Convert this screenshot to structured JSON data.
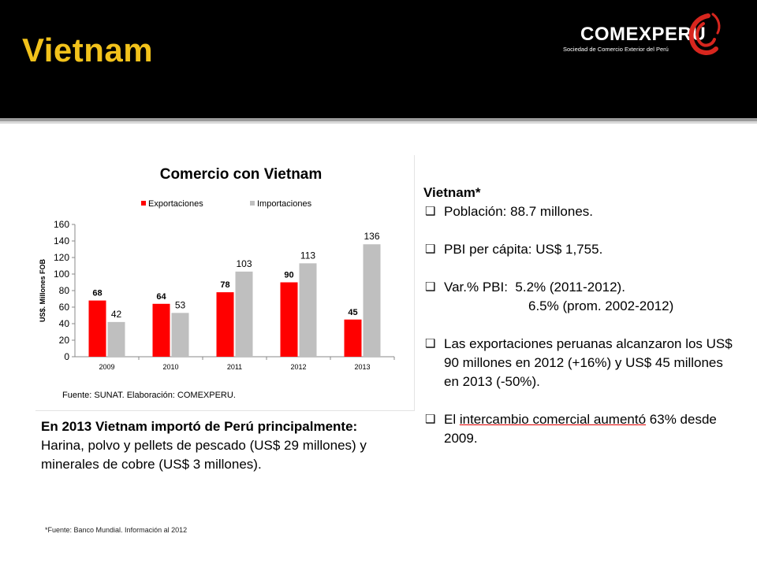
{
  "header": {
    "title": "Vietnam",
    "logo_word": "COMEXPERU",
    "logo_sub": "Sociedad de Comercio Exterior del Perú"
  },
  "colors": {
    "exports": "#ff0000",
    "imports": "#bfbfbf",
    "title": "#f2c21b"
  },
  "chart_data": {
    "type": "bar",
    "title": "Comercio con Vietnam",
    "categories": [
      "2009",
      "2010",
      "2011",
      "2012",
      "2013"
    ],
    "series": [
      {
        "name": "Exportaciones",
        "values": [
          68,
          64,
          78,
          90,
          45
        ],
        "color": "#ff0000"
      },
      {
        "name": "Importaciones",
        "values": [
          42,
          53,
          103,
          113,
          136
        ],
        "color": "#bfbfbf"
      }
    ],
    "ylabel": "US$. Millones FOB",
    "ylim": [
      0,
      160
    ],
    "yticks": [
      0,
      20,
      40,
      60,
      80,
      100,
      120,
      140,
      160
    ],
    "source": "Fuente: SUNAT. Elaboración: COMEXPERU.",
    "legend": "top",
    "grid": false
  },
  "right": {
    "title": "Vietnam*",
    "poblacion": "Población: 88.7 millones.",
    "pbi": "PBI per cápita: US$ 1,755.",
    "var1": "Var.% PBI:  5.2% (2011-2012).",
    "var2": "6.5% (prom. 2002-2012)",
    "exportaciones": "Las exportaciones peruanas alcanzaron los US$ 90 millones en 2012 (+16%) y US$ 45 millones en 2013 (-50%).",
    "intercambio_pre": "El ",
    "intercambio_ul": "intercambio comercial aumentó",
    "intercambio_post": " 63% desde 2009."
  },
  "left": {
    "bold": "En 2013 Vietnam importó de Perú principalmente:",
    "text": "Harina, polvo y pellets de pescado (US$ 29 millones) y minerales de cobre (US$ 3 millones)."
  },
  "footnote": "*Fuente: Banco Mundial. Información al 2012"
}
